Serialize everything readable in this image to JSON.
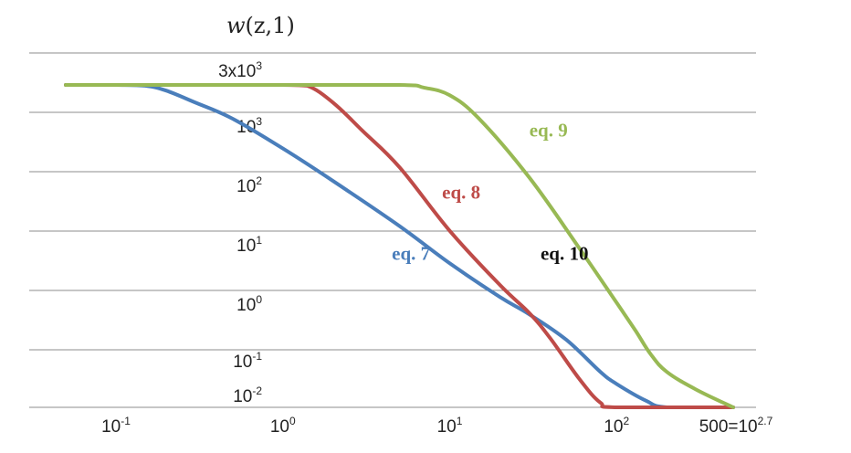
{
  "chart_data": {
    "type": "line",
    "title": "",
    "ylabel": {
      "italic": "w",
      "rest": "(z,1)"
    },
    "xlabel": "",
    "x_scale": "log",
    "y_scale": "log",
    "xlim": [
      0.05,
      560
    ],
    "ylim": [
      0.01,
      3000
    ],
    "grid": {
      "horizontal": true,
      "vertical": false
    },
    "legend": "none",
    "y_ticks": [
      {
        "value": 3000,
        "base": "3x10",
        "exp": "3"
      },
      {
        "value": 1000,
        "base": "10",
        "exp": "3"
      },
      {
        "value": 100,
        "base": "10",
        "exp": "2"
      },
      {
        "value": 10,
        "base": "10",
        "exp": "1"
      },
      {
        "value": 1,
        "base": "10",
        "exp": "0"
      },
      {
        "value": 0.1,
        "base": "10",
        "exp": "-1"
      },
      {
        "value": 0.01,
        "base": "10",
        "exp": "-2"
      }
    ],
    "x_ticks": [
      {
        "value": 0.1,
        "base": "10",
        "exp": "-1"
      },
      {
        "value": 1,
        "base": "10",
        "exp": "0"
      },
      {
        "value": 10,
        "base": "10",
        "exp": "1"
      },
      {
        "value": 100,
        "base": "10",
        "exp": "2"
      },
      {
        "value": 500,
        "base": "500=10",
        "exp": "2.7"
      }
    ],
    "series": [
      {
        "name": "eq. 7",
        "color": "#4a7ebb",
        "points": [
          [
            0.05,
            3000
          ],
          [
            0.1,
            3000
          ],
          [
            0.15,
            2900
          ],
          [
            0.2,
            2400
          ],
          [
            0.3,
            1500
          ],
          [
            0.5,
            800
          ],
          [
            1,
            250
          ],
          [
            2,
            70
          ],
          [
            5,
            12
          ],
          [
            10,
            2.8
          ],
          [
            20,
            0.75
          ],
          [
            30,
            0.38
          ],
          [
            50,
            0.14
          ],
          [
            80,
            0.04
          ],
          [
            100,
            0.025
          ],
          [
            150,
            0.013
          ],
          [
            200,
            0.01
          ],
          [
            500,
            0.01
          ]
        ]
      },
      {
        "name": "eq. 8",
        "color": "#be4b48",
        "points": [
          [
            0.05,
            3000
          ],
          [
            0.5,
            3000
          ],
          [
            1,
            3000
          ],
          [
            1.4,
            2900
          ],
          [
            2,
            1500
          ],
          [
            3,
            500
          ],
          [
            5,
            120
          ],
          [
            10,
            10
          ],
          [
            20,
            1.2
          ],
          [
            30,
            0.4
          ],
          [
            40,
            0.15
          ],
          [
            60,
            0.03
          ],
          [
            80,
            0.012
          ],
          [
            100,
            0.01
          ],
          [
            500,
            0.01
          ]
        ]
      },
      {
        "name": "eq. 9",
        "color": "#98b954",
        "points": [
          [
            0.05,
            3000
          ],
          [
            1,
            3000
          ],
          [
            5,
            3000
          ],
          [
            7,
            2700
          ],
          [
            10,
            2000
          ],
          [
            15,
            800
          ],
          [
            30,
            80
          ],
          [
            60,
            5
          ],
          [
            100,
            0.6
          ],
          [
            130,
            0.2
          ],
          [
            160,
            0.08
          ],
          [
            200,
            0.04
          ],
          [
            300,
            0.02
          ],
          [
            500,
            0.01
          ]
        ]
      }
    ],
    "annotations": [
      {
        "text": "eq. 9",
        "color": "#98b954",
        "x": 30,
        "y": 400
      },
      {
        "text": "eq. 8",
        "color": "#be4b48",
        "x": 9,
        "y": 35
      },
      {
        "text": "eq. 7",
        "color": "#4a7ebb",
        "x": 4.5,
        "y": 3.2
      },
      {
        "text": "eq. 10",
        "color": "#111111",
        "x": 35,
        "y": 3.2
      }
    ]
  }
}
